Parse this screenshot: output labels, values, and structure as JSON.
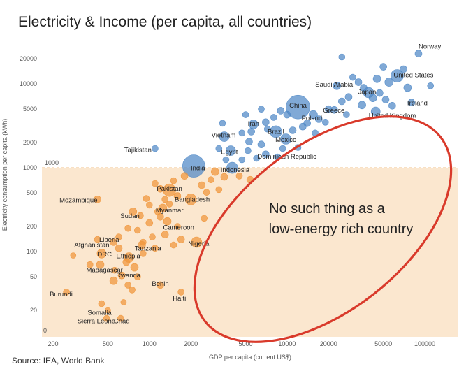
{
  "chart_data": {
    "type": "scatter",
    "title": "Electricity & Income (per capita, all countries)",
    "source": "Source: IEA, World Bank",
    "xlabel": "GDP per capita (current US$)",
    "ylabel": "Electricity consumption per capita (kWh)",
    "x_scale": "log",
    "y_scale": "log",
    "xlim": [
      160,
      160000
    ],
    "ylim": [
      13,
      25000
    ],
    "grid": false,
    "x_ticks": [
      {
        "value": 200,
        "label": "200"
      },
      {
        "value": 500,
        "label": "500"
      },
      {
        "value": 1000,
        "label": "1000"
      },
      {
        "value": 2000,
        "label": "2000"
      },
      {
        "value": 5000,
        "label": "5000"
      },
      {
        "value": 10000,
        "label": "10000"
      },
      {
        "value": 20000,
        "label": "20000"
      },
      {
        "value": 50000,
        "label": "50000"
      },
      {
        "value": 100000,
        "label": "100000"
      }
    ],
    "y_ticks": [
      {
        "value": 20000,
        "label": "20000"
      },
      {
        "value": 10000,
        "label": "10000"
      },
      {
        "value": 5000,
        "label": "5000"
      },
      {
        "value": 2000,
        "label": "2000"
      },
      {
        "value": 1000,
        "label": "1000"
      },
      {
        "value": 500,
        "label": "500"
      },
      {
        "value": 200,
        "label": "200"
      },
      {
        "value": 100,
        "label": "100"
      },
      {
        "value": 50,
        "label": "50"
      },
      {
        "value": 20,
        "label": "20"
      }
    ],
    "y_zero_label": "0",
    "threshold": {
      "value": 1000,
      "label": "1000"
    },
    "colors": {
      "above": "#4f88c6",
      "below": "#f0963a",
      "band": "#fbe7cf",
      "ellipse": "#d93a2b"
    },
    "annotation": {
      "line1": "No such thing as a",
      "line2": "low-energy rich country"
    },
    "labeled_points": [
      {
        "name": "Norway",
        "x": 90000,
        "y": 23000,
        "size": 6
      },
      {
        "name": "United States",
        "x": 63000,
        "y": 12500,
        "size": 14
      },
      {
        "name": "Saudi Arabia",
        "x": 23000,
        "y": 9500,
        "size": 7
      },
      {
        "name": "Japan",
        "x": 39000,
        "y": 7900,
        "size": 11
      },
      {
        "name": "Ireland",
        "x": 80000,
        "y": 6000,
        "size": 6
      },
      {
        "name": "China",
        "x": 12000,
        "y": 5300,
        "size": 30
      },
      {
        "name": "Greece",
        "x": 20000,
        "y": 5000,
        "size": 6
      },
      {
        "name": "Poland",
        "x": 15500,
        "y": 4300,
        "size": 8
      },
      {
        "name": "United Kingdom",
        "x": 44000,
        "y": 4700,
        "size": 9
      },
      {
        "name": "Iran",
        "x": 5700,
        "y": 3300,
        "size": 9
      },
      {
        "name": "Brazil",
        "x": 8300,
        "y": 2700,
        "size": 13
      },
      {
        "name": "Mexico",
        "x": 9800,
        "y": 2200,
        "size": 11
      },
      {
        "name": "Vietnam",
        "x": 3500,
        "y": 2350,
        "size": 10
      },
      {
        "name": "Tajikistan",
        "x": 1100,
        "y": 1700,
        "size": 5
      },
      {
        "name": "Egypt",
        "x": 3900,
        "y": 1600,
        "size": 10
      },
      {
        "name": "Dominican Republic",
        "x": 7000,
        "y": 1450,
        "size": 6
      },
      {
        "name": "India",
        "x": 2100,
        "y": 1050,
        "size": 28
      },
      {
        "name": "Indonesia",
        "x": 4000,
        "y": 1000,
        "size": 12
      },
      {
        "name": "Pakistan",
        "x": 1400,
        "y": 540,
        "size": 14
      },
      {
        "name": "Bangladesh",
        "x": 2000,
        "y": 420,
        "size": 12
      },
      {
        "name": "Mozambique",
        "x": 420,
        "y": 420,
        "size": 6
      },
      {
        "name": "Myanmar",
        "x": 1250,
        "y": 330,
        "size": 8
      },
      {
        "name": "Sudan",
        "x": 760,
        "y": 300,
        "size": 7
      },
      {
        "name": "Cameroon",
        "x": 1350,
        "y": 230,
        "size": 7
      },
      {
        "name": "Liberia",
        "x": 600,
        "y": 150,
        "size": 5
      },
      {
        "name": "Afghanistan",
        "x": 550,
        "y": 130,
        "size": 6
      },
      {
        "name": "Nigeria",
        "x": 2200,
        "y": 130,
        "size": 11
      },
      {
        "name": "Tanzania",
        "x": 880,
        "y": 120,
        "size": 7
      },
      {
        "name": "DRC",
        "x": 450,
        "y": 95,
        "size": 9
      },
      {
        "name": "Ethiopia",
        "x": 710,
        "y": 85,
        "size": 10
      },
      {
        "name": "Madagascar",
        "x": 440,
        "y": 70,
        "size": 7
      },
      {
        "name": "Rwanda",
        "x": 630,
        "y": 52,
        "size": 6
      },
      {
        "name": "Benin",
        "x": 1200,
        "y": 40,
        "size": 6
      },
      {
        "name": "Haiti",
        "x": 1700,
        "y": 33,
        "size": 5
      },
      {
        "name": "Burundi",
        "x": 250,
        "y": 33,
        "size": 5
      },
      {
        "name": "Somalia",
        "x": 450,
        "y": 24,
        "size": 5
      },
      {
        "name": "Sierra Leone",
        "x": 490,
        "y": 16,
        "size": 5
      },
      {
        "name": "Chad",
        "x": 620,
        "y": 16,
        "size": 5
      }
    ],
    "other_points": [
      [
        25000,
        21000,
        5
      ],
      [
        110000,
        9500,
        5
      ],
      [
        50000,
        16000,
        6
      ],
      [
        45000,
        11500,
        7
      ],
      [
        55000,
        10500,
        8
      ],
      [
        70000,
        15000,
        6
      ],
      [
        75000,
        9000,
        7
      ],
      [
        33000,
        10500,
        6
      ],
      [
        30000,
        12000,
        5
      ],
      [
        36000,
        9000,
        6
      ],
      [
        28000,
        7000,
        6
      ],
      [
        42000,
        6800,
        7
      ],
      [
        47000,
        7800,
        6
      ],
      [
        52000,
        6500,
        6
      ],
      [
        58000,
        5500,
        6
      ],
      [
        35000,
        5600,
        7
      ],
      [
        25000,
        6200,
        6
      ],
      [
        22000,
        4900,
        6
      ],
      [
        17000,
        3800,
        6
      ],
      [
        14000,
        3400,
        6
      ],
      [
        10000,
        4300,
        6
      ],
      [
        9000,
        4800,
        6
      ],
      [
        8000,
        4000,
        5
      ],
      [
        7000,
        3500,
        6
      ],
      [
        6500,
        5000,
        5
      ],
      [
        5000,
        4300,
        5
      ],
      [
        5500,
        2700,
        6
      ],
      [
        4700,
        2600,
        5
      ],
      [
        6500,
        1900,
        6
      ],
      [
        5300,
        2050,
        6
      ],
      [
        11000,
        2800,
        6
      ],
      [
        13000,
        3100,
        6
      ],
      [
        16000,
        2600,
        5
      ],
      [
        19000,
        3500,
        5
      ],
      [
        27000,
        4300,
        5
      ],
      [
        3200,
        1700,
        5
      ],
      [
        3600,
        1250,
        5
      ],
      [
        4700,
        1250,
        5
      ],
      [
        6000,
        1300,
        5
      ],
      [
        8500,
        1350,
        5
      ],
      [
        9300,
        1700,
        5
      ],
      [
        12000,
        1750,
        5
      ],
      [
        5200,
        1600,
        5
      ],
      [
        3400,
        3400,
        5
      ],
      [
        7200,
        2900,
        5
      ],
      [
        3000,
        900,
        7
      ],
      [
        3500,
        780,
        6
      ],
      [
        2800,
        720,
        5
      ],
      [
        4500,
        800,
        5
      ],
      [
        5400,
        720,
        6
      ],
      [
        1800,
        800,
        6
      ],
      [
        1500,
        700,
        5
      ],
      [
        1100,
        650,
        5
      ],
      [
        1200,
        560,
        6
      ],
      [
        1600,
        460,
        6
      ],
      [
        2400,
        620,
        6
      ],
      [
        2600,
        510,
        5
      ],
      [
        950,
        430,
        5
      ],
      [
        1000,
        360,
        5
      ],
      [
        1400,
        370,
        5
      ],
      [
        1200,
        260,
        6
      ],
      [
        1000,
        220,
        6
      ],
      [
        1600,
        200,
        5
      ],
      [
        2500,
        250,
        5
      ],
      [
        3200,
        550,
        5
      ],
      [
        820,
        180,
        5
      ],
      [
        700,
        190,
        5
      ],
      [
        1300,
        160,
        6
      ],
      [
        1700,
        140,
        6
      ],
      [
        1100,
        110,
        5
      ],
      [
        900,
        95,
        5
      ],
      [
        600,
        110,
        6
      ],
      [
        680,
        75,
        6
      ],
      [
        780,
        65,
        7
      ],
      [
        560,
        60,
        5
      ],
      [
        820,
        50,
        5
      ],
      [
        700,
        40,
        5
      ],
      [
        900,
        130,
        5
      ],
      [
        550,
        45,
        7
      ],
      [
        1300,
        420,
        5
      ],
      [
        1150,
        300,
        5
      ],
      [
        860,
        270,
        5
      ],
      [
        1500,
        120,
        5
      ],
      [
        1050,
        150,
        5
      ],
      [
        370,
        70,
        5
      ],
      [
        420,
        140,
        5
      ],
      [
        280,
        90,
        4
      ],
      [
        750,
        35,
        5
      ],
      [
        500,
        20,
        4
      ],
      [
        650,
        25,
        4
      ]
    ]
  }
}
